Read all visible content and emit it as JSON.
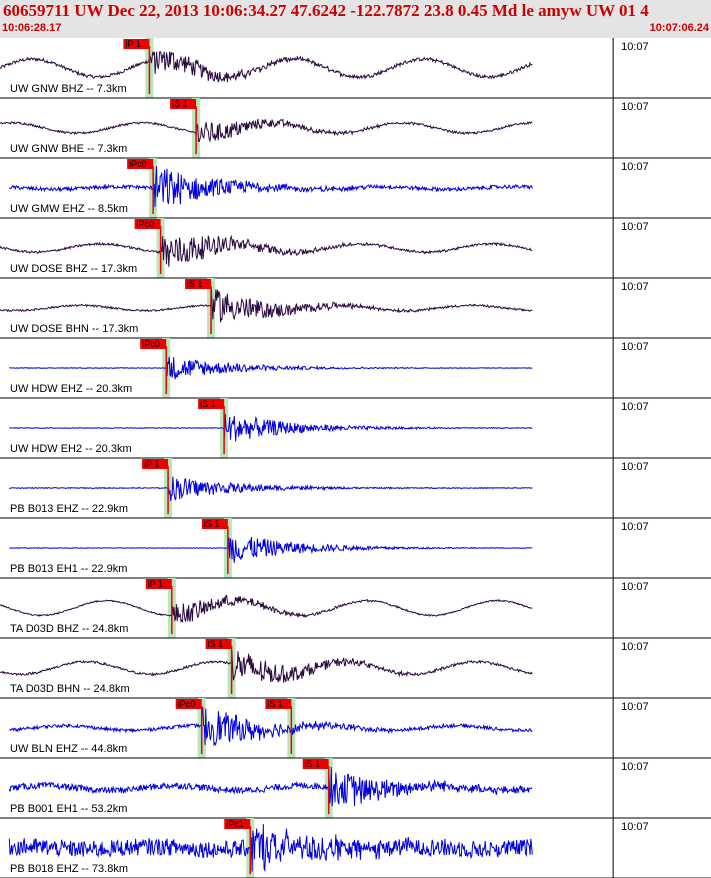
{
  "header": {
    "title": "60659711 UW Dec 22, 2013 10:06:34.27    47.6242 -122.7872 23.8 0.45 Md le amyw UW 01    4",
    "start_time": "10:06:28.17",
    "end_time": "10:07:06.24"
  },
  "colors": {
    "title": "#cc0000",
    "pick_box": "#ee0000",
    "window": "#b8e6b8",
    "trace_dark": "#2a0a40",
    "trace_blue": "#0000dd"
  },
  "chart_data": {
    "type": "seismogram",
    "time_range": [
      "10:06:28.17",
      "10:07:06.24"
    ],
    "time_tick_label": "10:07",
    "traces": [
      {
        "label": "UW GNW BHZ -- 7.3km",
        "color": "dark",
        "amp": 0.6,
        "noise": 0.2,
        "lf": 1.0,
        "picks": [
          {
            "text": "iP 1",
            "t": 8.0
          }
        ]
      },
      {
        "label": "UW GNW BHE -- 7.3km",
        "color": "dark",
        "amp": 0.5,
        "noise": 0.15,
        "lf": 0.7,
        "picks": [
          {
            "text": "iS 1",
            "t": 10.5
          }
        ]
      },
      {
        "label": "UW GMW EHZ -- 8.5km",
        "color": "blue",
        "amp": 0.9,
        "noise": 0.15,
        "lf": 0.1,
        "picks": [
          {
            "text": "iPc0",
            "t": 8.2
          }
        ]
      },
      {
        "label": "UW DOSE BHZ -- 17.3km",
        "color": "dark",
        "amp": 0.8,
        "noise": 0.1,
        "lf": 0.35,
        "picks": [
          {
            "text": "iPc0",
            "t": 8.6
          }
        ]
      },
      {
        "label": "UW DOSE BHN -- 17.3km",
        "color": "dark",
        "amp": 0.7,
        "noise": 0.1,
        "lf": 0.25,
        "picks": [
          {
            "text": "iS 1",
            "t": 11.3
          }
        ]
      },
      {
        "label": "UW HDW EHZ -- 20.3km",
        "color": "blue",
        "amp": 0.5,
        "noise": 0.04,
        "lf": 0.0,
        "picks": [
          {
            "text": "iPc0",
            "t": 8.9
          }
        ]
      },
      {
        "label": "UW HDW EH2 -- 20.3km",
        "color": "blue",
        "amp": 0.6,
        "noise": 0.04,
        "lf": 0.0,
        "picks": [
          {
            "text": "iS 1",
            "t": 12.0
          }
        ]
      },
      {
        "label": "PB B013 EHZ -- 22.9km",
        "color": "blue",
        "amp": 0.5,
        "noise": 0.06,
        "lf": 0.0,
        "picks": [
          {
            "text": "iP 1",
            "t": 9.0
          }
        ]
      },
      {
        "label": "PB B013 EH1 -- 22.9km",
        "color": "blue",
        "amp": 0.6,
        "noise": 0.03,
        "lf": 0.0,
        "picks": [
          {
            "text": "iS 1",
            "t": 12.2
          }
        ]
      },
      {
        "label": "TA D03D BHZ -- 24.8km",
        "color": "dark",
        "amp": 0.5,
        "noise": 0.1,
        "lf": 1.0,
        "picks": [
          {
            "text": "iP 1",
            "t": 9.2
          }
        ]
      },
      {
        "label": "TA D03D BHN -- 24.8km",
        "color": "dark",
        "amp": 0.7,
        "noise": 0.12,
        "lf": 0.6,
        "picks": [
          {
            "text": "iS 1",
            "t": 12.4
          }
        ]
      },
      {
        "label": "UW BLN EHZ -- 44.8km",
        "color": "blue",
        "amp": 0.8,
        "noise": 0.15,
        "lf": 0.2,
        "picks": [
          {
            "text": "iPc0",
            "t": 10.8
          },
          {
            "text": "iS 1",
            "t": 15.6
          }
        ]
      },
      {
        "label": "PB B001 EH1 -- 53.2km",
        "color": "blue",
        "amp": 0.8,
        "noise": 0.3,
        "lf": 0.2,
        "picks": [
          {
            "text": "iS 1",
            "t": 17.6
          }
        ]
      },
      {
        "label": "PB B018 EHZ -- 73.8km",
        "color": "blue",
        "amp": 0.9,
        "noise": 0.7,
        "lf": 0.1,
        "picks": [
          {
            "text": "iPc1",
            "t": 13.4
          }
        ]
      }
    ]
  }
}
